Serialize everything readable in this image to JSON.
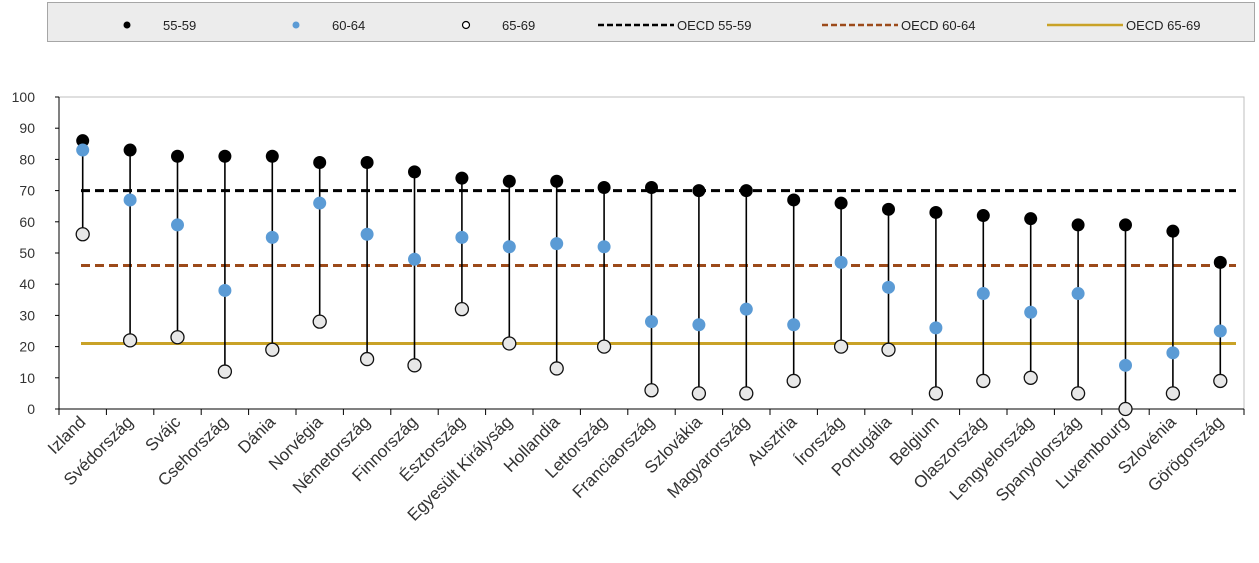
{
  "chart_data": {
    "type": "scatter",
    "title": "",
    "xlabel": "",
    "ylabel": "",
    "ylim": [
      0,
      100
    ],
    "yticks": [
      0,
      10,
      20,
      30,
      40,
      50,
      60,
      70,
      80,
      90,
      100
    ],
    "grid": false,
    "legend_position": "top",
    "categories": [
      "Izland",
      "Svédország",
      "Svájc",
      "Csehország",
      "Dánia",
      "Norvégia",
      "Németország",
      "Finnország",
      "Észtország",
      "Egyesült Királyság",
      "Hollandia",
      "Lettország",
      "Franciaország",
      "Szlovákia",
      "Magyarország",
      "Ausztria",
      "Írország",
      "Portugália",
      "Belgium",
      "Olaszország",
      "Lengyelország",
      "Spanyolország",
      "Luxembourg",
      "Szlovénia",
      "Görögország"
    ],
    "series": [
      {
        "name": "55-59",
        "marker": "filled-black",
        "color": "#000000",
        "values": [
          86,
          83,
          81,
          81,
          81,
          79,
          79,
          76,
          74,
          73,
          73,
          71,
          71,
          70,
          70,
          67,
          66,
          64,
          63,
          62,
          61,
          59,
          59,
          57,
          47
        ]
      },
      {
        "name": "60-64",
        "marker": "filled-blue",
        "color": "#5b9bd5",
        "values": [
          83,
          67,
          59,
          38,
          55,
          66,
          56,
          48,
          55,
          52,
          53,
          52,
          28,
          27,
          32,
          27,
          47,
          39,
          26,
          37,
          31,
          37,
          14,
          18,
          25
        ]
      },
      {
        "name": "65-69",
        "marker": "hollow",
        "color": "#000000",
        "values": [
          56,
          22,
          23,
          12,
          19,
          28,
          16,
          14,
          32,
          21,
          13,
          20,
          6,
          5,
          5,
          9,
          20,
          19,
          5,
          9,
          10,
          5,
          0,
          5,
          9
        ]
      }
    ],
    "reference_lines": [
      {
        "name": "OECD 55-59",
        "value": 70,
        "style": "dashed",
        "color": "#000000"
      },
      {
        "name": "OECD 60-64",
        "value": 46,
        "style": "dashed",
        "color": "#9c4a1a"
      },
      {
        "name": "OECD 65-69",
        "value": 21,
        "style": "solid",
        "color": "#c9a227"
      }
    ]
  }
}
